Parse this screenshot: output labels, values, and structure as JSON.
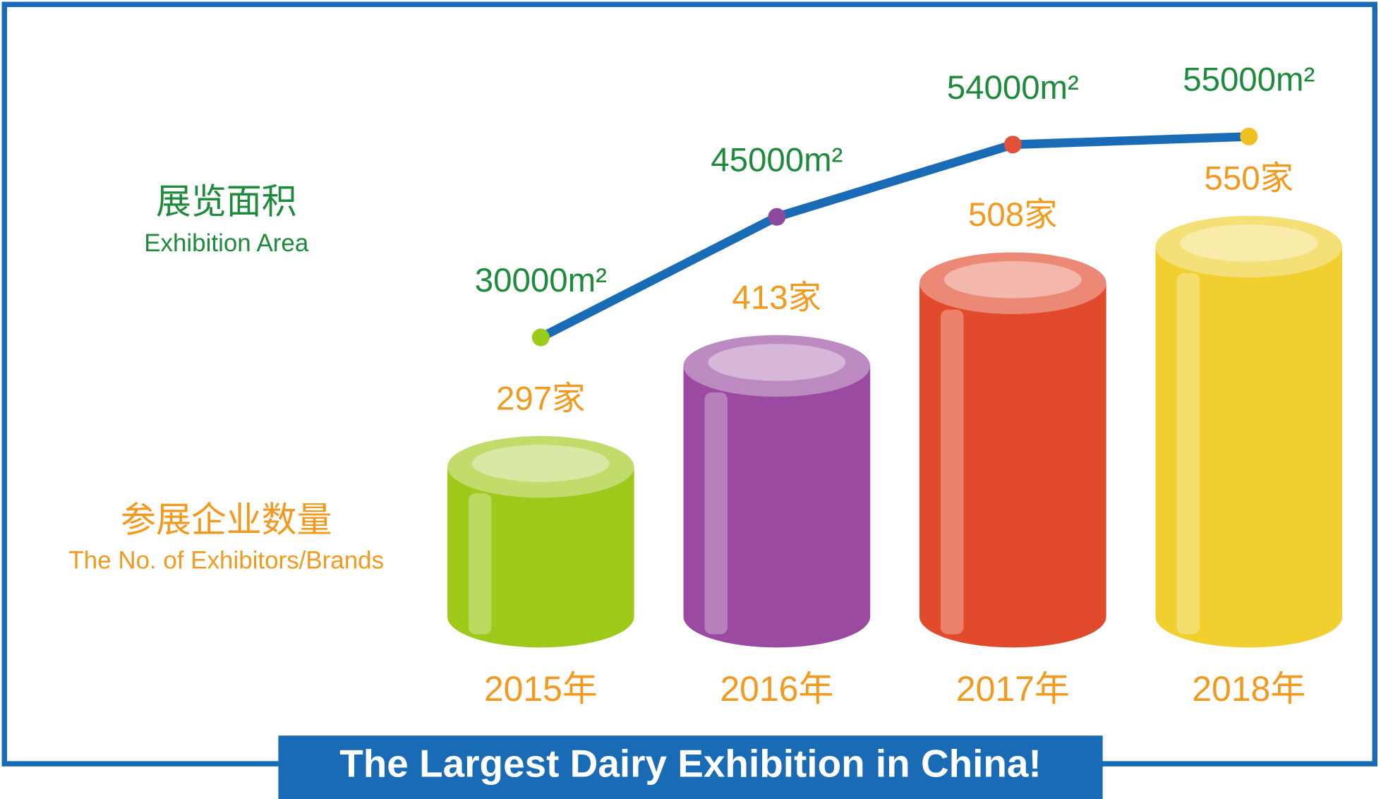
{
  "chart_data": {
    "type": "combo",
    "title": "The Largest Dairy Exhibition in China!",
    "categories": [
      "2015年",
      "2016年",
      "2017年",
      "2018年"
    ],
    "series": [
      {
        "type": "bar",
        "name": "参展企业数量",
        "name_en": "The No. of Exhibitors/Brands",
        "color": "#f39a1e",
        "colors": [
          "#9fc91a",
          "#9a4aa0",
          "#e24a2c",
          "#f0cf2e"
        ],
        "values": [
          297,
          413,
          508,
          550
        ],
        "value_labels": [
          "297家",
          "413家",
          "508家",
          "550家"
        ]
      },
      {
        "type": "line",
        "name": "展览面积",
        "name_en": "Exhibition Area",
        "color": "#1e8a3c",
        "line_color": "#1a6bb5",
        "marker_colors": [
          "#9ccc1a",
          "#8a4a9e",
          "#e0503a",
          "#f0c020"
        ],
        "values": [
          30000,
          45000,
          54000,
          55000
        ],
        "value_labels": [
          "30000m²",
          "45000m²",
          "54000m²",
          "55000m²"
        ]
      }
    ]
  }
}
